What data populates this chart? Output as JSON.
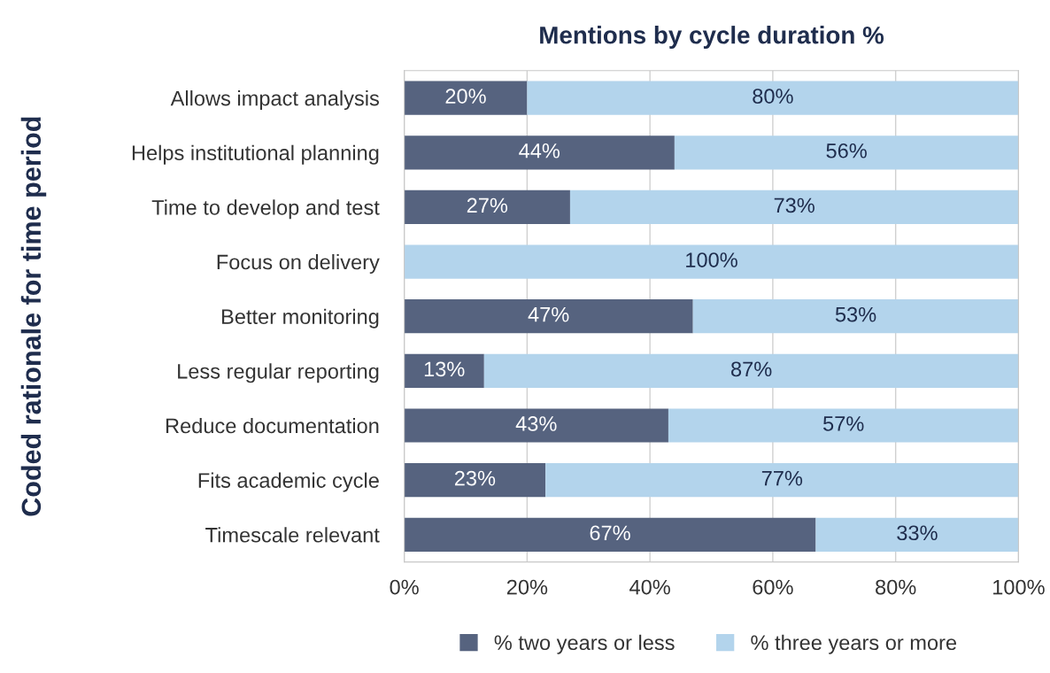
{
  "chart_data": {
    "type": "bar",
    "orientation": "horizontal",
    "stacked": true,
    "title": "Mentions by cycle duration %",
    "ylabel": "Coded rationale for time period",
    "categories": [
      "Allows impact analysis",
      "Helps institutional planning",
      "Time to develop and test",
      "Focus on delivery",
      "Better monitoring",
      "Less regular reporting",
      "Reduce documentation",
      "Fits academic cycle",
      "Timescale relevant"
    ],
    "series": [
      {
        "name": "% two years or less",
        "color": "#56637f",
        "values": [
          20,
          44,
          27,
          0,
          47,
          13,
          43,
          23,
          67
        ],
        "value_labels": [
          "20%",
          "44%",
          "27%",
          null,
          "47%",
          "13%",
          "43%",
          "23%",
          "67%"
        ]
      },
      {
        "name": "% three years or more",
        "color": "#b3d4ec",
        "values": [
          80,
          56,
          73,
          100,
          53,
          87,
          57,
          77,
          33
        ],
        "value_labels": [
          "80%",
          "56%",
          "73%",
          "100%",
          "53%",
          "87%",
          "57%",
          "77%",
          "33%"
        ]
      }
    ],
    "xlim": [
      0,
      100
    ],
    "xticks": [
      {
        "value": 0,
        "label": "0%"
      },
      {
        "value": 20,
        "label": "20%"
      },
      {
        "value": 40,
        "label": "40%"
      },
      {
        "value": 60,
        "label": "60%"
      },
      {
        "value": 80,
        "label": "80%"
      },
      {
        "value": 100,
        "label": "100%"
      }
    ],
    "grid": "x",
    "legend": "bottom"
  }
}
